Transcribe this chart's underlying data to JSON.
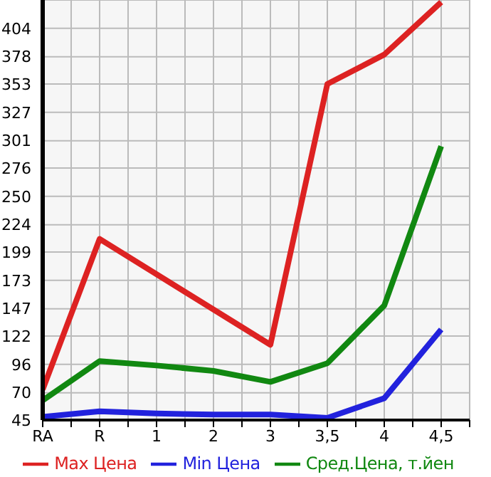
{
  "chart_data": {
    "type": "line",
    "categories": [
      "RA",
      "R",
      "1",
      "2",
      "3",
      "3,5",
      "4",
      "4,5"
    ],
    "series": [
      {
        "name": "Max Цена",
        "color": "#dd2222",
        "values": [
          73,
          211,
          null,
          null,
          114,
          353,
          380,
          428
        ]
      },
      {
        "name": "Min Цена",
        "color": "#2222dd",
        "values": [
          48,
          53,
          51,
          50,
          50,
          47,
          65,
          128
        ]
      },
      {
        "name": "Сред.Цена, т.йен",
        "color": "#118811",
        "values": [
          63,
          99,
          95,
          90,
          80,
          97,
          150,
          296
        ]
      }
    ],
    "ylim": [
      45,
      430
    ],
    "yticks": [
      45,
      70,
      96,
      122,
      147,
      173,
      199,
      224,
      250,
      276,
      301,
      327,
      353,
      378,
      404
    ],
    "grid": true,
    "legend": "bottom",
    "marker": "none",
    "line_style": "solid"
  }
}
